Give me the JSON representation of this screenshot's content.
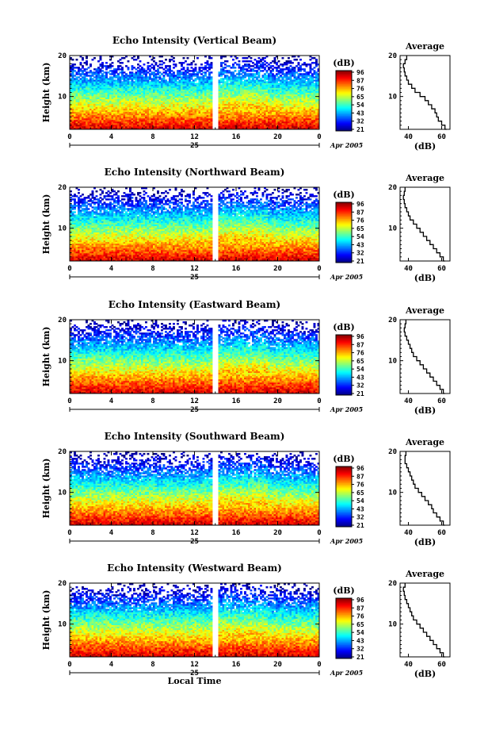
{
  "chart_data": [
    {
      "type": "heatmap",
      "title": "Echo Intensity (Vertical Beam)",
      "ylabel": "Height (km)",
      "xticks": [
        "0",
        "4",
        "8",
        "12",
        "16",
        "20",
        "0"
      ],
      "yticks": [
        "10",
        "20"
      ],
      "xlim": [
        0,
        24
      ],
      "ylim": [
        2,
        20
      ],
      "date_day": "25",
      "date_label": "Apr 2005",
      "colorbar_unit": "(dB)",
      "colorbar_ticks": [
        "96",
        "87",
        "76",
        "65",
        "54",
        "43",
        "32",
        "21"
      ],
      "avg": {
        "title": "Average",
        "xlabel": "(dB)",
        "xticks": [
          "40",
          "60"
        ],
        "xlim": [
          35,
          65
        ],
        "yticks": [
          "10",
          "20"
        ],
        "profile": [
          [
            2,
            63
          ],
          [
            3,
            62
          ],
          [
            4,
            60
          ],
          [
            5,
            58
          ],
          [
            6,
            57
          ],
          [
            7,
            56
          ],
          [
            8,
            54
          ],
          [
            9,
            52
          ],
          [
            10,
            50
          ],
          [
            11,
            47
          ],
          [
            12,
            44
          ],
          [
            13,
            42
          ],
          [
            14,
            40
          ],
          [
            15,
            39
          ],
          [
            16,
            38
          ],
          [
            17,
            37.5
          ],
          [
            18,
            37
          ],
          [
            19,
            38
          ],
          [
            20,
            39
          ]
        ]
      }
    },
    {
      "type": "heatmap",
      "title": "Echo Intensity (Northward Beam)",
      "ylabel": "Height (km)",
      "xticks": [
        "0",
        "4",
        "8",
        "12",
        "16",
        "20",
        "0"
      ],
      "yticks": [
        "10",
        "20"
      ],
      "xlim": [
        0,
        24
      ],
      "ylim": [
        2,
        20
      ],
      "date_day": "25",
      "date_label": "Apr 2005",
      "colorbar_unit": "(dB)",
      "colorbar_ticks": [
        "96",
        "87",
        "76",
        "65",
        "54",
        "43",
        "32",
        "21"
      ],
      "avg": {
        "title": "Average",
        "xlabel": "(dB)",
        "xticks": [
          "40",
          "60"
        ],
        "xlim": [
          35,
          65
        ],
        "yticks": [
          "10",
          "20"
        ],
        "profile": [
          [
            2,
            62
          ],
          [
            3,
            61
          ],
          [
            4,
            59
          ],
          [
            5,
            57
          ],
          [
            6,
            55
          ],
          [
            7,
            53
          ],
          [
            8,
            51
          ],
          [
            9,
            49
          ],
          [
            10,
            47
          ],
          [
            11,
            45
          ],
          [
            12,
            43
          ],
          [
            13,
            41
          ],
          [
            14,
            40
          ],
          [
            15,
            39
          ],
          [
            16,
            38
          ],
          [
            17,
            37.5
          ],
          [
            18,
            37
          ],
          [
            19,
            37.5
          ],
          [
            20,
            38
          ]
        ]
      }
    },
    {
      "type": "heatmap",
      "title": "Echo Intensity (Eastward Beam)",
      "ylabel": "Height (km)",
      "xticks": [
        "0",
        "4",
        "8",
        "12",
        "16",
        "20",
        "0"
      ],
      "yticks": [
        "10",
        "20"
      ],
      "xlim": [
        0,
        24
      ],
      "ylim": [
        2,
        20
      ],
      "date_day": "25",
      "date_label": "Apr 2005",
      "colorbar_unit": "(dB)",
      "colorbar_ticks": [
        "96",
        "87",
        "76",
        "65",
        "54",
        "43",
        "32",
        "21"
      ],
      "avg": {
        "title": "Average",
        "xlabel": "(dB)",
        "xticks": [
          "40",
          "60"
        ],
        "xlim": [
          35,
          65
        ],
        "yticks": [
          "10",
          "20"
        ],
        "profile": [
          [
            2,
            62
          ],
          [
            3,
            61
          ],
          [
            4,
            59
          ],
          [
            5,
            57
          ],
          [
            6,
            55
          ],
          [
            7,
            53
          ],
          [
            8,
            51
          ],
          [
            9,
            49
          ],
          [
            10,
            47
          ],
          [
            11,
            45
          ],
          [
            12,
            43
          ],
          [
            13,
            42
          ],
          [
            14,
            41
          ],
          [
            15,
            40
          ],
          [
            16,
            39
          ],
          [
            17,
            38
          ],
          [
            18,
            37.5
          ],
          [
            19,
            38
          ],
          [
            20,
            38.5
          ]
        ]
      }
    },
    {
      "type": "heatmap",
      "title": "Echo Intensity (Southward Beam)",
      "ylabel": "Height (km)",
      "xticks": [
        "0",
        "4",
        "8",
        "12",
        "16",
        "20",
        "0"
      ],
      "yticks": [
        "10",
        "20"
      ],
      "xlim": [
        0,
        24
      ],
      "ylim": [
        2,
        20
      ],
      "date_day": "25",
      "date_label": "Apr 2005",
      "colorbar_unit": "(dB)",
      "colorbar_ticks": [
        "96",
        "87",
        "76",
        "65",
        "54",
        "43",
        "32",
        "21"
      ],
      "avg": {
        "title": "Average",
        "xlabel": "(dB)",
        "xticks": [
          "40",
          "60"
        ],
        "xlim": [
          35,
          65
        ],
        "yticks": [
          "10",
          "20"
        ],
        "profile": [
          [
            2,
            62
          ],
          [
            3,
            61
          ],
          [
            4,
            59
          ],
          [
            5,
            57
          ],
          [
            6,
            55
          ],
          [
            7,
            54
          ],
          [
            8,
            52
          ],
          [
            9,
            50
          ],
          [
            10,
            48
          ],
          [
            11,
            46
          ],
          [
            12,
            44
          ],
          [
            13,
            43
          ],
          [
            14,
            42
          ],
          [
            15,
            41
          ],
          [
            16,
            40
          ],
          [
            17,
            39
          ],
          [
            18,
            38
          ],
          [
            19,
            38
          ],
          [
            20,
            38.5
          ]
        ]
      }
    },
    {
      "type": "heatmap",
      "title": "Echo Intensity (Westward Beam)",
      "ylabel": "Height (km)",
      "xticks": [
        "0",
        "4",
        "8",
        "12",
        "16",
        "20",
        "0"
      ],
      "yticks": [
        "10",
        "20"
      ],
      "xlim": [
        0,
        24
      ],
      "ylim": [
        2,
        20
      ],
      "date_day": "25",
      "date_label": "Apr 2005",
      "colorbar_unit": "(dB)",
      "colorbar_ticks": [
        "96",
        "87",
        "76",
        "65",
        "54",
        "43",
        "32",
        "21"
      ],
      "xlabel": "Local Time",
      "avg": {
        "title": "Average",
        "xlabel": "(dB)",
        "xticks": [
          "40",
          "60"
        ],
        "xlim": [
          35,
          65
        ],
        "yticks": [
          "10",
          "20"
        ],
        "profile": [
          [
            2,
            62
          ],
          [
            3,
            61
          ],
          [
            4,
            59
          ],
          [
            5,
            57
          ],
          [
            6,
            55
          ],
          [
            7,
            53
          ],
          [
            8,
            51
          ],
          [
            9,
            49
          ],
          [
            10,
            47
          ],
          [
            11,
            45
          ],
          [
            12,
            43
          ],
          [
            13,
            42
          ],
          [
            14,
            41
          ],
          [
            15,
            40
          ],
          [
            16,
            39
          ],
          [
            17,
            38
          ],
          [
            18,
            37.5
          ],
          [
            19,
            37
          ],
          [
            20,
            38
          ]
        ]
      }
    }
  ]
}
